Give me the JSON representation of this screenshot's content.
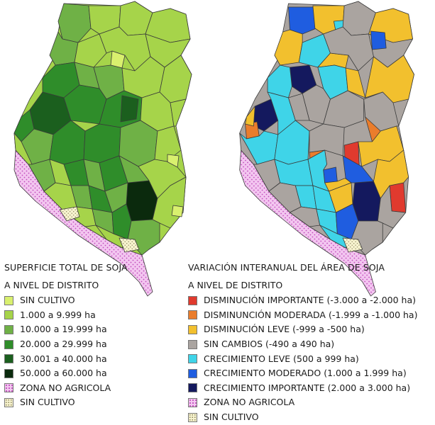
{
  "colors": {
    "dots_bg": "#f3c6f0",
    "dots_fg": "#c04cbc",
    "sincultivo_bg": "#f7f3cf",
    "sincultivo_fg": "#8a845a",
    "border": "#3a3a3a"
  },
  "left_map": {
    "title": "SUPERFICIE TOTAL DE SOJA",
    "subtitle": "A NIVEL DE DISTRITO",
    "legend": [
      {
        "label": "SIN CULTIVO",
        "color": "#d9f06e",
        "pattern": "none"
      },
      {
        "label": "1.000 a 9.999 ha",
        "color": "#a6d44a",
        "pattern": "none"
      },
      {
        "label": "10.000 a 19.999 ha",
        "color": "#6fb146",
        "pattern": "none"
      },
      {
        "label": "20.000 a 29.999 ha",
        "color": "#2f8d2a",
        "pattern": "none"
      },
      {
        "label": "30.001 a 40.000 ha",
        "color": "#1b5f1e",
        "pattern": "none"
      },
      {
        "label": "50.000 a 60.000 ha",
        "color": "#0b2a0d",
        "pattern": "none"
      },
      {
        "label": "ZONA NO AGRICOLA",
        "color": "#f3c6f0",
        "pattern": "dots-pink"
      },
      {
        "label": "SIN CULTIVO",
        "color": "#f7f3cf",
        "pattern": "dots-cream"
      }
    ]
  },
  "right_map": {
    "title": "VARIACIÓN INTERANUAL DEL ÁREA DE SOJA",
    "subtitle": "A NIVEL DE DISTRITO",
    "legend": [
      {
        "label": "DISMINUCIÓN IMPORTANTE (-3.000 a -2.000 ha)",
        "color": "#e03a2e",
        "pattern": "none"
      },
      {
        "label": "DISMINUNCIÓN MODERADA (-1.999 a -1.000 ha)",
        "color": "#ea7d2c",
        "pattern": "none"
      },
      {
        "label": "DISMINUCIÓN LEVE (-999 a -500 ha)",
        "color": "#f2c02e",
        "pattern": "none"
      },
      {
        "label": "SIN CAMBIOS (-490 a 490 ha)",
        "color": "#aaa4a0",
        "pattern": "none"
      },
      {
        "label": "CRECIMIENTO LEVE (500 a 999 ha)",
        "color": "#3fd4e8",
        "pattern": "none"
      },
      {
        "label": "CRECIMIENTO MODERADO (1.000 a 1.999 ha)",
        "color": "#1f5de0",
        "pattern": "none"
      },
      {
        "label": "CRECIMIENTO IMPORTANTE (2.000 a 3.000 ha)",
        "color": "#14195e",
        "pattern": "none"
      },
      {
        "label": "ZONA NO AGRICOLA",
        "color": "#f3c6f0",
        "pattern": "dots-pink"
      },
      {
        "label": "SIN CULTIVO",
        "color": "#f7f3cf",
        "pattern": "dots-cream"
      }
    ]
  }
}
